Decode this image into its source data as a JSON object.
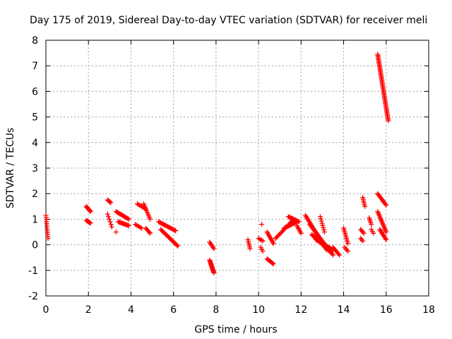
{
  "chart_data": {
    "type": "scatter",
    "title": "Day 175 of 2019, Sidereal Day-to-day VTEC variation (SDTVAR) for receiver meli",
    "xlabel": "GPS time / hours",
    "ylabel": "SDTVAR / TECUs",
    "xlim": [
      0,
      18
    ],
    "ylim": [
      -2,
      8
    ],
    "xticks": [
      "0",
      "2",
      "4",
      "6",
      "8",
      "10",
      "12",
      "14",
      "16",
      "18"
    ],
    "yticks": [
      "-2",
      "-1",
      "0",
      "1",
      "2",
      "3",
      "4",
      "5",
      "6",
      "7",
      "8"
    ],
    "grid": true,
    "marker": "+",
    "color": "#ff0000",
    "series": [
      {
        "name": "SDTVAR",
        "segments": [
          {
            "x0": 0.0,
            "x1": 0.1,
            "y0": 1.15,
            "y1": 0.25,
            "n": 12
          },
          {
            "x0": 1.9,
            "x1": 2.1,
            "y0": 1.5,
            "y1": 1.3,
            "n": 10
          },
          {
            "x0": 1.9,
            "x1": 2.1,
            "y0": 0.95,
            "y1": 0.85,
            "n": 6
          },
          {
            "x0": 2.9,
            "x1": 3.05,
            "y0": 1.75,
            "y1": 1.65,
            "n": 5
          },
          {
            "x0": 2.9,
            "x1": 3.1,
            "y0": 1.2,
            "y1": 0.7,
            "n": 6
          },
          {
            "x0": 3.3,
            "x1": 3.9,
            "y0": 1.3,
            "y1": 1.0,
            "n": 14
          },
          {
            "x0": 3.4,
            "x1": 3.9,
            "y0": 0.9,
            "y1": 0.75,
            "n": 12
          },
          {
            "x0": 4.3,
            "x1": 4.7,
            "y0": 1.6,
            "y1": 1.4,
            "n": 8
          },
          {
            "x0": 4.6,
            "x1": 4.9,
            "y0": 1.6,
            "y1": 1.0,
            "n": 10
          },
          {
            "x0": 4.2,
            "x1": 4.5,
            "y0": 0.8,
            "y1": 0.65,
            "n": 6
          },
          {
            "x0": 4.7,
            "x1": 4.9,
            "y0": 0.65,
            "y1": 0.45,
            "n": 6
          },
          {
            "x0": 5.3,
            "x1": 6.1,
            "y0": 0.9,
            "y1": 0.55,
            "n": 18
          },
          {
            "x0": 5.4,
            "x1": 6.2,
            "y0": 0.6,
            "y1": -0.05,
            "n": 20
          },
          {
            "x0": 7.7,
            "x1": 7.9,
            "y0": 0.1,
            "y1": -0.15,
            "n": 6
          },
          {
            "x0": 7.7,
            "x1": 7.9,
            "y0": -0.6,
            "y1": -1.1,
            "n": 16
          },
          {
            "x0": 9.5,
            "x1": 9.6,
            "y0": 0.2,
            "y1": -0.15,
            "n": 6
          },
          {
            "x0": 10.0,
            "x1": 10.2,
            "y0": 0.25,
            "y1": 0.15,
            "n": 4
          },
          {
            "x0": 10.1,
            "x1": 10.2,
            "y0": -0.1,
            "y1": -0.25,
            "n": 3
          },
          {
            "x0": 10.4,
            "x1": 10.7,
            "y0": 0.5,
            "y1": 0.05,
            "n": 10
          },
          {
            "x0": 10.4,
            "x1": 10.7,
            "y0": -0.55,
            "y1": -0.75,
            "n": 8
          },
          {
            "x0": 10.8,
            "x1": 11.6,
            "y0": 0.25,
            "y1": 0.95,
            "n": 18
          },
          {
            "x0": 11.2,
            "x1": 11.8,
            "y0": 0.65,
            "y1": 0.9,
            "n": 14
          },
          {
            "x0": 11.4,
            "x1": 11.9,
            "y0": 1.1,
            "y1": 0.9,
            "n": 12
          },
          {
            "x0": 11.8,
            "x1": 12.0,
            "y0": 0.75,
            "y1": 0.45,
            "n": 6
          },
          {
            "x0": 12.2,
            "x1": 13.2,
            "y0": 1.15,
            "y1": -0.2,
            "n": 26
          },
          {
            "x0": 12.4,
            "x1": 13.5,
            "y0": 0.8,
            "y1": -0.4,
            "n": 26
          },
          {
            "x0": 12.5,
            "x1": 13.4,
            "y0": 0.4,
            "y1": -0.3,
            "n": 22
          },
          {
            "x0": 12.7,
            "x1": 13.5,
            "y0": 0.2,
            "y1": -0.2,
            "n": 18
          },
          {
            "x0": 12.9,
            "x1": 13.1,
            "y0": 1.1,
            "y1": 0.5,
            "n": 8
          },
          {
            "x0": 13.5,
            "x1": 13.8,
            "y0": -0.1,
            "y1": -0.4,
            "n": 8
          },
          {
            "x0": 14.0,
            "x1": 14.2,
            "y0": 0.65,
            "y1": 0.05,
            "n": 10
          },
          {
            "x0": 14.05,
            "x1": 14.2,
            "y0": -0.1,
            "y1": -0.25,
            "n": 4
          },
          {
            "x0": 14.8,
            "x1": 14.95,
            "y0": 0.6,
            "y1": 0.45,
            "n": 4
          },
          {
            "x0": 14.9,
            "x1": 15.0,
            "y0": 1.85,
            "y1": 1.5,
            "n": 6
          },
          {
            "x0": 14.8,
            "x1": 14.9,
            "y0": 0.25,
            "y1": 0.15,
            "n": 3
          },
          {
            "x0": 15.2,
            "x1": 15.3,
            "y0": 1.05,
            "y1": 0.8,
            "n": 5
          },
          {
            "x0": 15.3,
            "x1": 15.4,
            "y0": 0.6,
            "y1": 0.45,
            "n": 3
          },
          {
            "x0": 15.6,
            "x1": 16.0,
            "y0": 2.0,
            "y1": 1.55,
            "n": 12
          },
          {
            "x0": 15.6,
            "x1": 16.0,
            "y0": 1.3,
            "y1": 0.5,
            "n": 16
          },
          {
            "x0": 15.7,
            "x1": 16.0,
            "y0": 0.6,
            "y1": 0.2,
            "n": 10
          },
          {
            "x0": 15.6,
            "x1": 16.1,
            "y0": 7.45,
            "y1": 4.85,
            "n": 50
          }
        ],
        "points": [
          [
            3.3,
            0.5
          ],
          [
            10.15,
            0.8
          ]
        ]
      }
    ]
  }
}
